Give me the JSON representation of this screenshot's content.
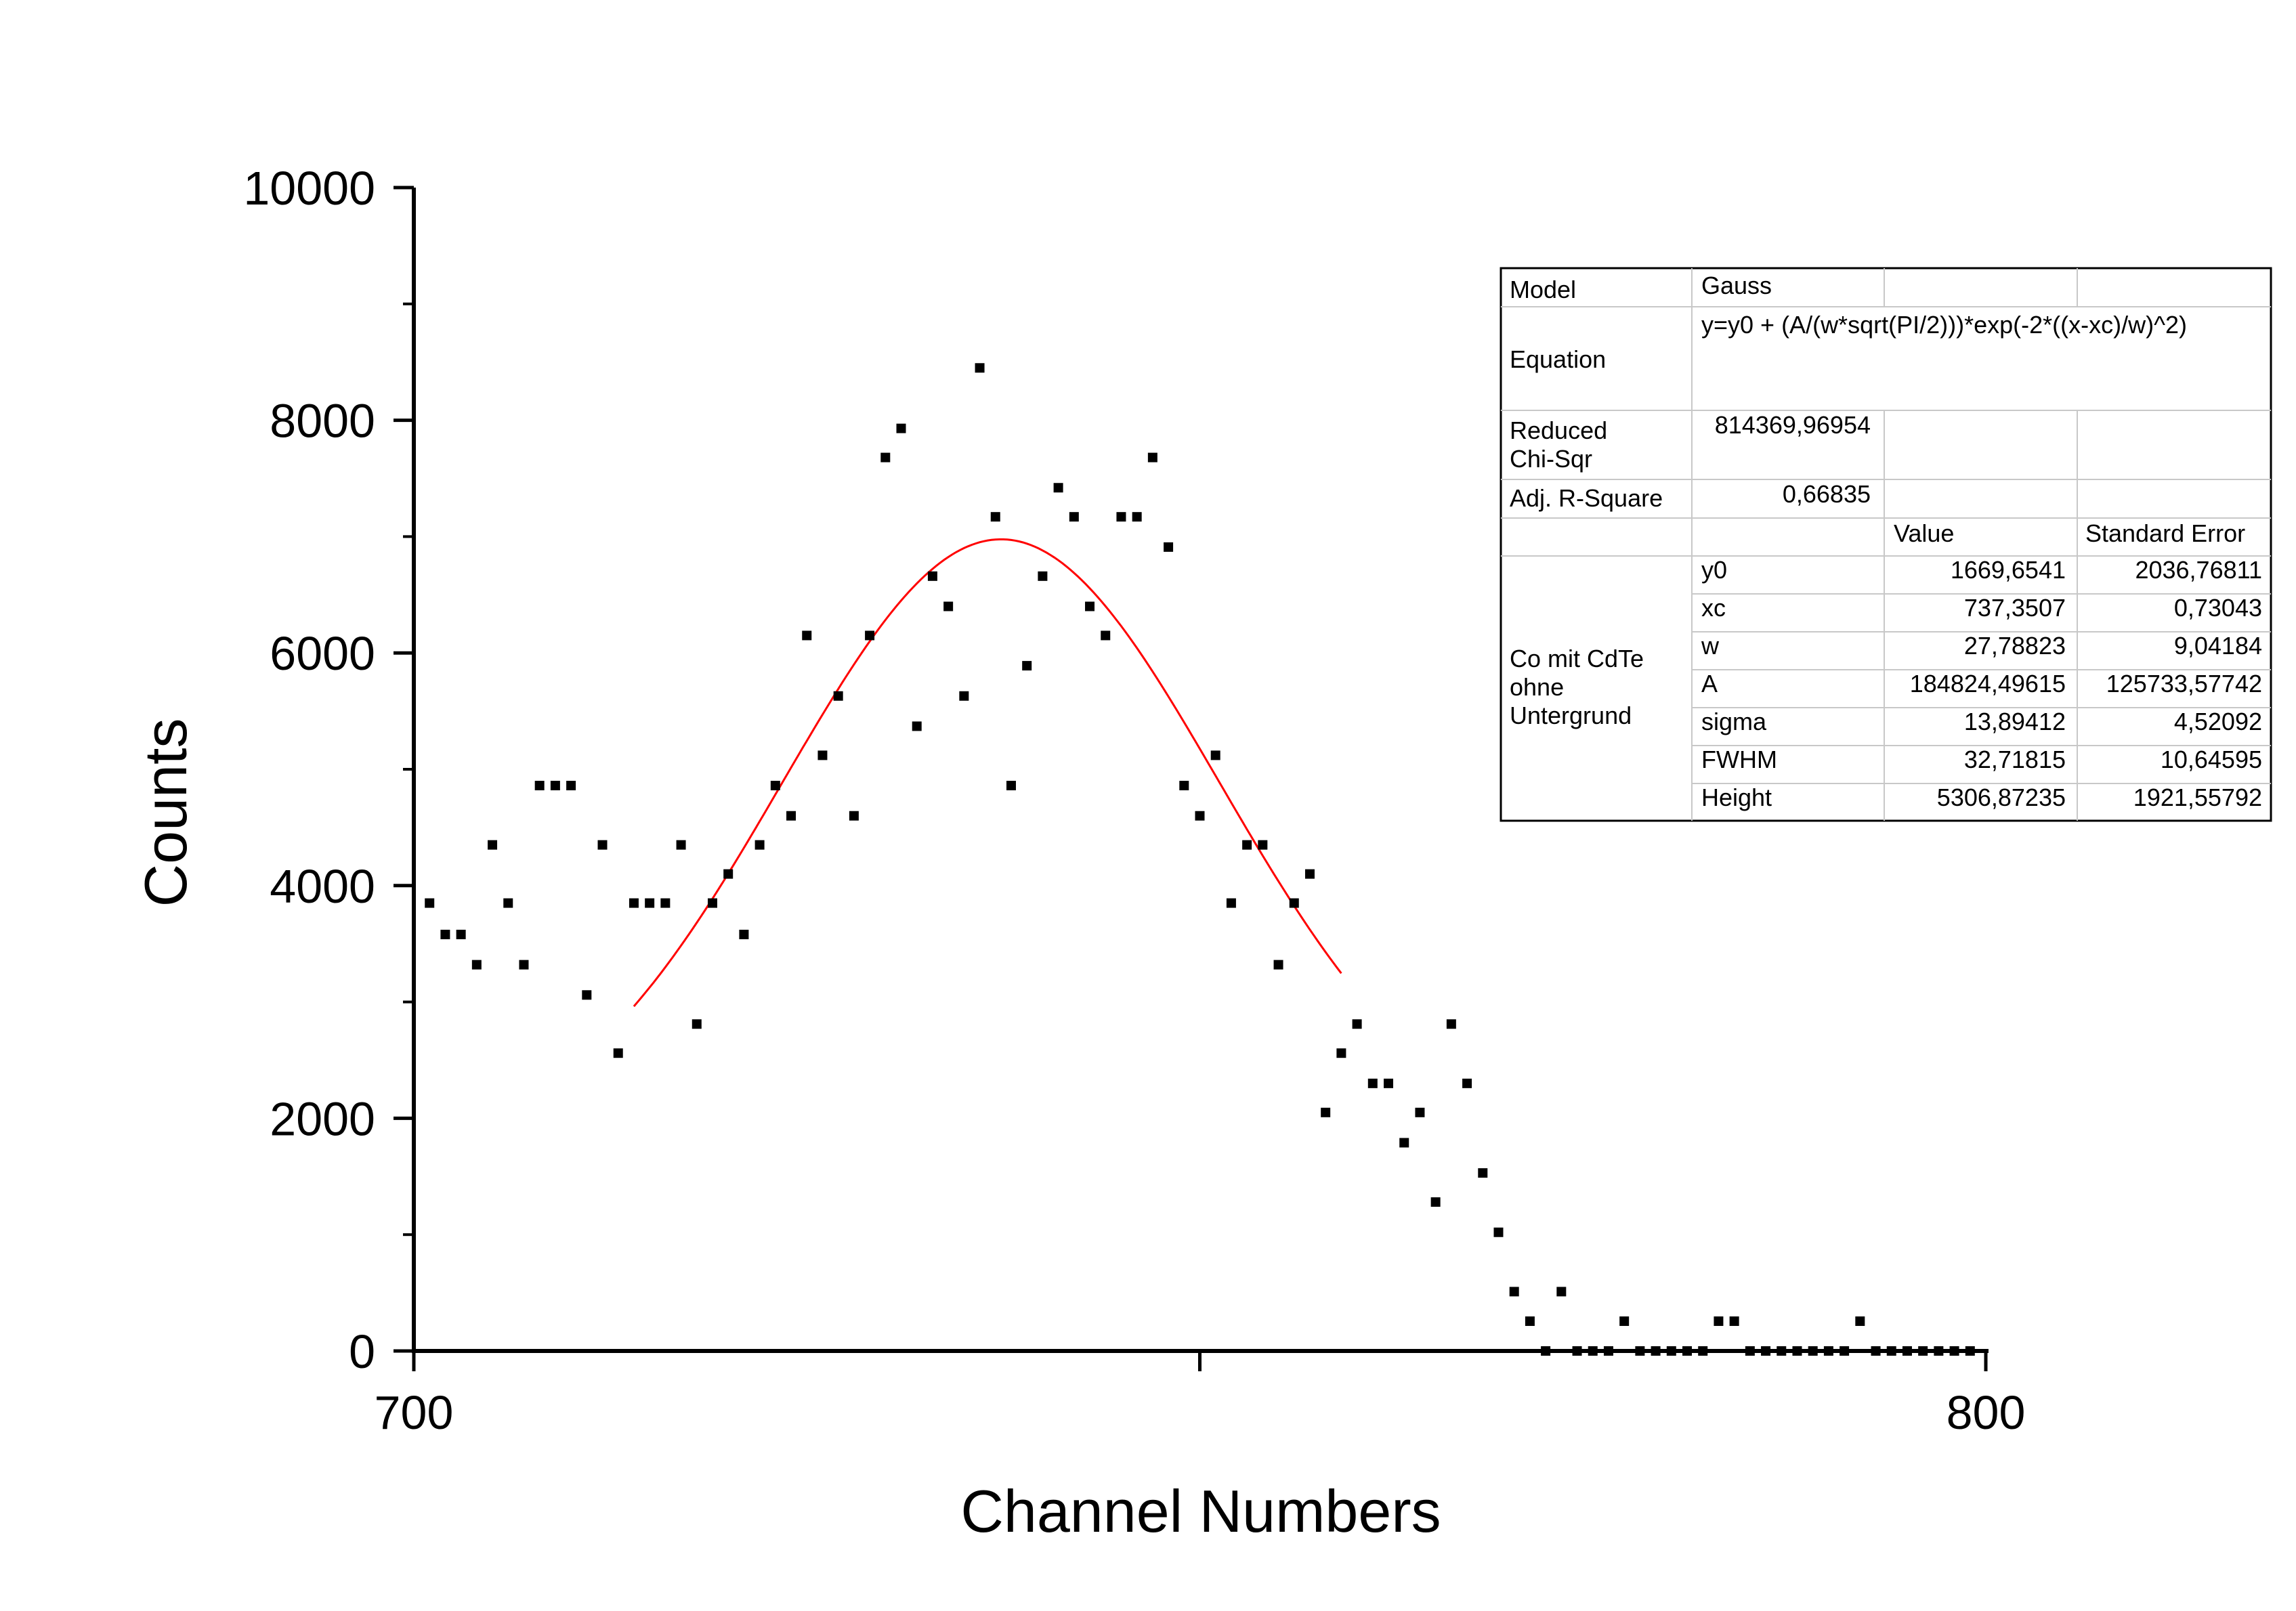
{
  "chart_data": {
    "type": "scatter",
    "xlabel": "Channel Numbers",
    "ylabel": "Counts",
    "xlim": [
      700,
      800
    ],
    "ylim": [
      0,
      10000
    ],
    "x_ticks": [
      700,
      750,
      800
    ],
    "x_tick_labels": [
      "700",
      "",
      "800"
    ],
    "y_ticks": [
      0,
      2000,
      4000,
      6000,
      8000,
      10000
    ],
    "y_tick_labels": [
      "0",
      "2000",
      "4000",
      "6000",
      "8000",
      "10000"
    ],
    "grid": false,
    "colors": {
      "points": "#000000",
      "fit": "#ff0000",
      "axes": "#000000"
    },
    "points": [
      [
        701,
        3850
      ],
      [
        702,
        3580
      ],
      [
        703,
        3580
      ],
      [
        704,
        3320
      ],
      [
        705,
        4350
      ],
      [
        706,
        3850
      ],
      [
        707,
        3320
      ],
      [
        708,
        4860
      ],
      [
        709,
        4860
      ],
      [
        710,
        4860
      ],
      [
        711,
        3060
      ],
      [
        712,
        4350
      ],
      [
        713,
        2560
      ],
      [
        714,
        3850
      ],
      [
        715,
        3850
      ],
      [
        716,
        3850
      ],
      [
        717,
        4350
      ],
      [
        718,
        2810
      ],
      [
        719,
        3850
      ],
      [
        720,
        4100
      ],
      [
        721,
        3580
      ],
      [
        722,
        4350
      ],
      [
        723,
        4860
      ],
      [
        724,
        4600
      ],
      [
        725,
        6150
      ],
      [
        726,
        5120
      ],
      [
        727,
        5630
      ],
      [
        728,
        4600
      ],
      [
        729,
        6150
      ],
      [
        730,
        7680
      ],
      [
        731,
        7930
      ],
      [
        732,
        5370
      ],
      [
        733,
        6660
      ],
      [
        734,
        6400
      ],
      [
        735,
        5630
      ],
      [
        736,
        8450
      ],
      [
        737,
        7170
      ],
      [
        738,
        4860
      ],
      [
        739,
        5890
      ],
      [
        740,
        6660
      ],
      [
        741,
        7420
      ],
      [
        742,
        7170
      ],
      [
        743,
        6400
      ],
      [
        744,
        6150
      ],
      [
        745,
        7170
      ],
      [
        746,
        7170
      ],
      [
        747,
        7680
      ],
      [
        748,
        6910
      ],
      [
        749,
        4860
      ],
      [
        750,
        4600
      ],
      [
        751,
        5120
      ],
      [
        752,
        3850
      ],
      [
        753,
        4350
      ],
      [
        754,
        4350
      ],
      [
        755,
        3320
      ],
      [
        756,
        3850
      ],
      [
        757,
        4100
      ],
      [
        758,
        2050
      ],
      [
        759,
        2560
      ],
      [
        760,
        2810
      ],
      [
        761,
        2300
      ],
      [
        762,
        2300
      ],
      [
        763,
        1790
      ],
      [
        764,
        2050
      ],
      [
        765,
        1280
      ],
      [
        766,
        2810
      ],
      [
        767,
        2300
      ],
      [
        768,
        1530
      ],
      [
        769,
        1020
      ],
      [
        770,
        510
      ],
      [
        771,
        256
      ],
      [
        772,
        0
      ],
      [
        773,
        510
      ],
      [
        774,
        0
      ],
      [
        775,
        0
      ],
      [
        776,
        0
      ],
      [
        777,
        256
      ],
      [
        778,
        0
      ],
      [
        779,
        0
      ],
      [
        780,
        0
      ],
      [
        781,
        0
      ],
      [
        782,
        0
      ],
      [
        783,
        256
      ],
      [
        784,
        256
      ],
      [
        785,
        0
      ],
      [
        786,
        0
      ],
      [
        787,
        0
      ],
      [
        788,
        0
      ],
      [
        789,
        0
      ],
      [
        790,
        0
      ],
      [
        791,
        0
      ],
      [
        792,
        256
      ],
      [
        793,
        0
      ],
      [
        794,
        0
      ],
      [
        795,
        0
      ],
      [
        796,
        0
      ],
      [
        797,
        0
      ],
      [
        798,
        0
      ],
      [
        799,
        0
      ]
    ],
    "fit": {
      "model": "Gauss",
      "y0": 1669.6541,
      "xc": 737.3507,
      "w": 27.78823,
      "A": 184824.49615,
      "x_range": [
        714,
        759
      ]
    }
  },
  "fit_table": {
    "model_label": "Model",
    "model_value": "Gauss",
    "equation_label": "Equation",
    "equation_value": "y=y0 + (A/(w*sqrt(PI/2)))*exp(-2*((x-xc)/w)^2)",
    "chisq_label_1": "Reduced",
    "chisq_label_2": "Chi-Sqr",
    "chisq_value": "814369,96954",
    "r2_label": "Adj. R-Square",
    "r2_value": "0,66835",
    "col_value": "Value",
    "col_error": "Standard Error",
    "dataset_label_1": "Co mit CdTe",
    "dataset_label_2": "ohne",
    "dataset_label_3": "Untergrund",
    "params": [
      {
        "name": "y0",
        "value": "1669,6541",
        "error": "2036,76811"
      },
      {
        "name": "xc",
        "value": "737,3507",
        "error": "0,73043"
      },
      {
        "name": "w",
        "value": "27,78823",
        "error": "9,04184"
      },
      {
        "name": "A",
        "value": "184824,49615",
        "error": "125733,57742"
      },
      {
        "name": "sigma",
        "value": "13,89412",
        "error": "4,52092"
      },
      {
        "name": "FWHM",
        "value": "32,71815",
        "error": "10,64595"
      },
      {
        "name": "Height",
        "value": "5306,87235",
        "error": "1921,55792"
      }
    ]
  }
}
